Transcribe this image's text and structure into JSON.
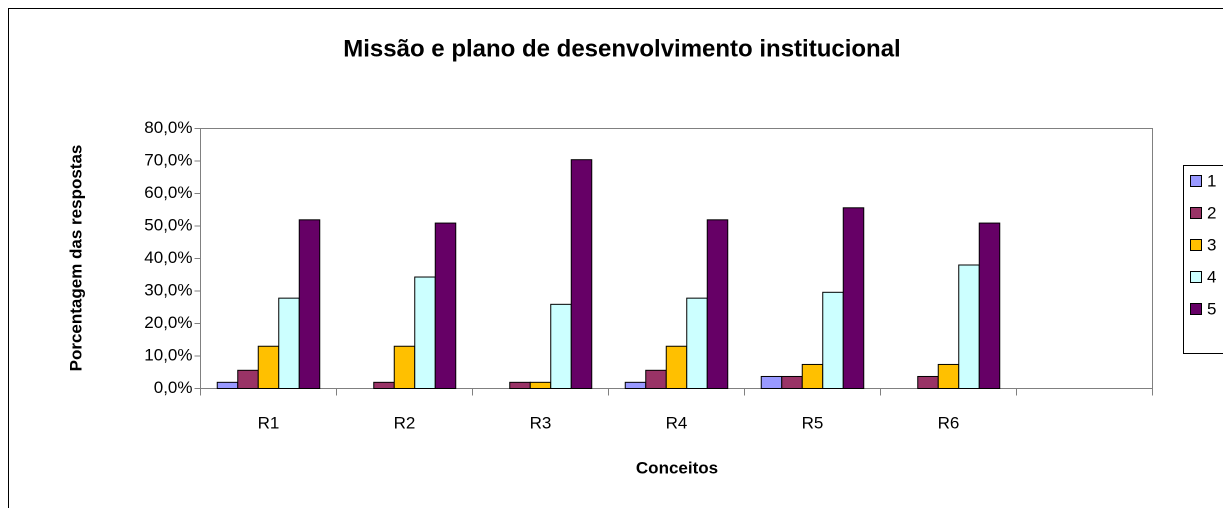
{
  "chart_data": {
    "type": "bar",
    "title": "Missão e plano de desenvolvimento institucional",
    "ylabel": "Porcentagem das respostas",
    "xlabel": "Conceitos",
    "categories": [
      "R1",
      "R2",
      "R3",
      "R4",
      "R5",
      "R6",
      null
    ],
    "series": [
      {
        "name": "1",
        "color": "#9999ff",
        "values": [
          1.9,
          0,
          0,
          1.9,
          3.7,
          0,
          null
        ]
      },
      {
        "name": "2",
        "color": "#993366",
        "values": [
          5.6,
          1.9,
          1.9,
          5.6,
          3.7,
          3.7,
          null
        ]
      },
      {
        "name": "3",
        "color": "#ffc000",
        "values": [
          13.0,
          13.0,
          1.9,
          13.0,
          7.4,
          7.4,
          null
        ]
      },
      {
        "name": "4",
        "color": "#ccffff",
        "values": [
          27.8,
          34.3,
          25.9,
          27.8,
          29.6,
          38.0,
          null
        ]
      },
      {
        "name": "5",
        "color": "#660066",
        "values": [
          51.9,
          50.9,
          70.4,
          51.9,
          55.6,
          50.9,
          null
        ]
      }
    ],
    "ylim": [
      0,
      80
    ],
    "yticks": [
      {
        "value": 0,
        "label": "0,0%"
      },
      {
        "value": 10,
        "label": "10,0%"
      },
      {
        "value": 20,
        "label": "20,0%"
      },
      {
        "value": 30,
        "label": "30,0%"
      },
      {
        "value": 40,
        "label": "40,0%"
      },
      {
        "value": 50,
        "label": "50,0%"
      },
      {
        "value": 60,
        "label": "60,0%"
      },
      {
        "value": 70,
        "label": "70,0%"
      },
      {
        "value": 80,
        "label": "80,0%"
      }
    ],
    "grid": false,
    "legend": "right"
  }
}
